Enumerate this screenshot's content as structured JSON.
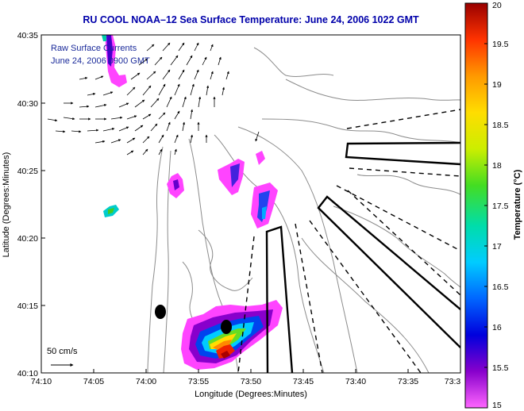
{
  "title": "RU COOL   NOAA–12  Sea Surface Temperature:  June 24, 2006 1022 GMT",
  "legend": {
    "line1": "Raw Surface Currents",
    "line2": "June 24, 2006 0900 GMT"
  },
  "scale_label": "50 cm/s",
  "x_axis": {
    "label": "Longitude (Degrees:Minutes)",
    "ticks": [
      "74:10",
      "74:05",
      "74:00",
      "73:55",
      "73:50",
      "73:45",
      "73:40",
      "73:35",
      "73:3"
    ]
  },
  "y_axis": {
    "label": "Latitude (Degrees:Minutes)",
    "ticks": [
      "40:10",
      "40:15",
      "40:20",
      "40:25",
      "40:30",
      "40:35"
    ]
  },
  "colorbar": {
    "label": "Temperature (°C)",
    "ticks": [
      "15",
      "15.5",
      "16",
      "16.5",
      "17",
      "17.5",
      "18",
      "18.5",
      "19",
      "19.5",
      "20"
    ],
    "min": 15,
    "max": 20,
    "colors": [
      "#ff66ff",
      "#8800cc",
      "#0000dd",
      "#0066ff",
      "#00ccff",
      "#00ddaa",
      "#44dd22",
      "#ccee00",
      "#ffdd00",
      "#ff9900",
      "#ff3300",
      "#990000"
    ]
  },
  "contour_color": "#8c8c8c"
}
